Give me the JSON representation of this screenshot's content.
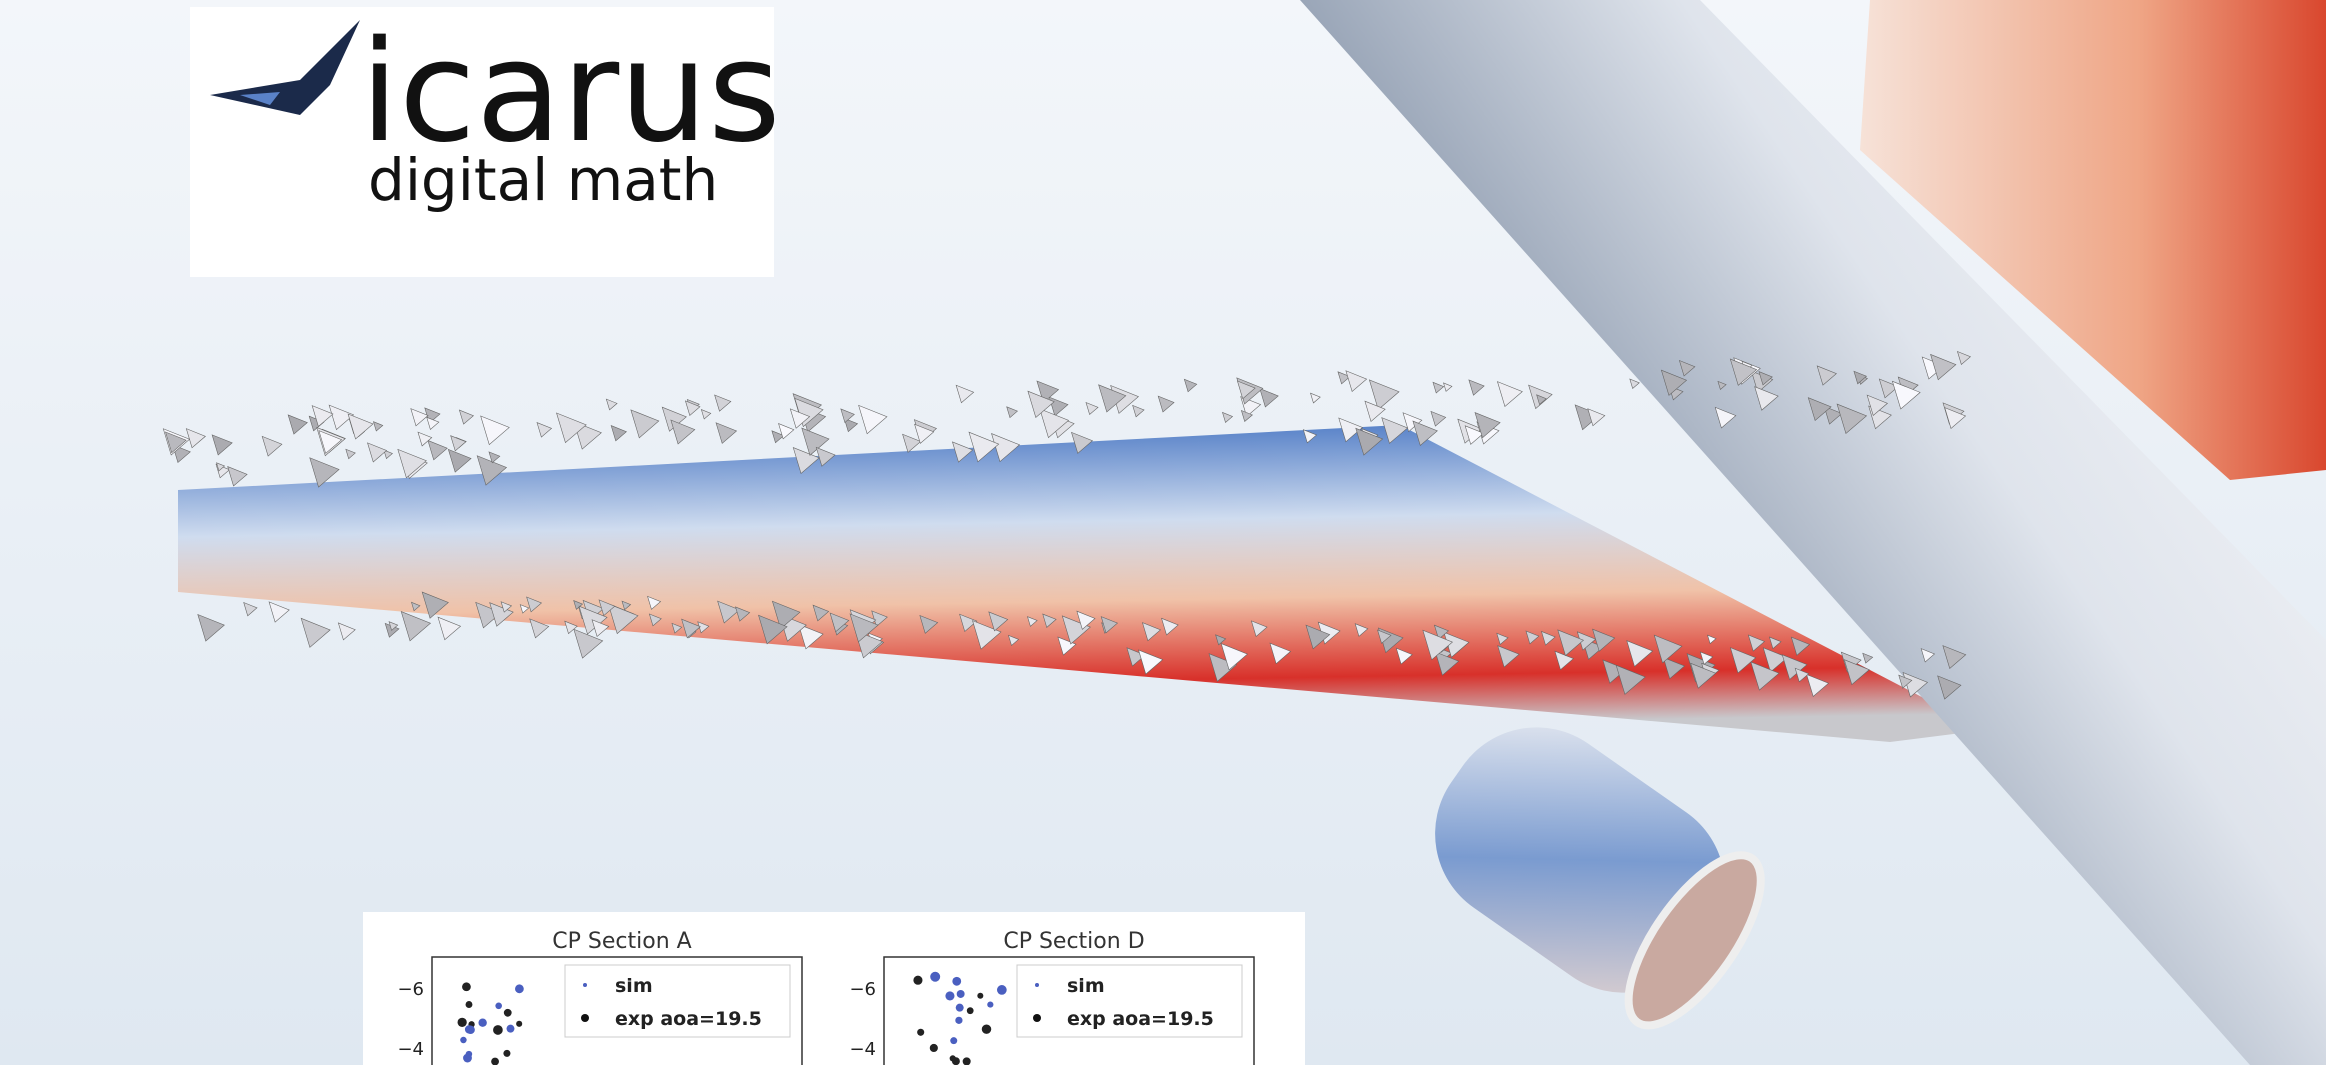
{
  "logo": {
    "name": "icarus",
    "tagline": "digital math"
  },
  "insets": [
    {
      "title": "CP Section A",
      "legend": [
        "sim",
        "exp aoa=19.5"
      ],
      "yticks": [
        "−6",
        "−4"
      ]
    },
    {
      "title": "CP Section D",
      "legend": [
        "sim",
        "exp aoa=19.5"
      ],
      "yticks": [
        "−6",
        "−4"
      ]
    }
  ]
}
